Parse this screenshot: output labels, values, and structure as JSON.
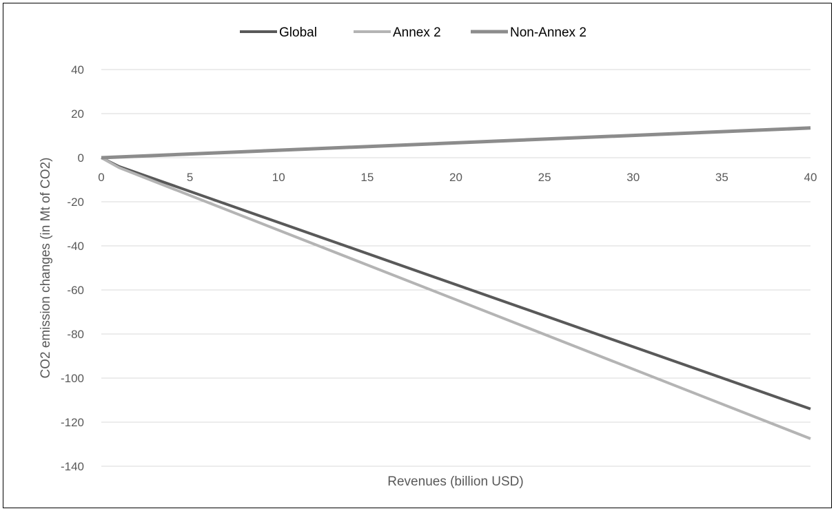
{
  "chart_data": {
    "type": "line",
    "title": "",
    "xlabel": "Revenues (billion USD)",
    "ylabel": "CO2 emission changes (in Mt of CO2)",
    "xlim": [
      0,
      40
    ],
    "ylim": [
      -140,
      40
    ],
    "x_ticks": [
      "0",
      "5",
      "10",
      "15",
      "20",
      "25",
      "30",
      "35",
      "40"
    ],
    "y_ticks": [
      "40",
      "20",
      "0",
      "-20",
      "-40",
      "-60",
      "-80",
      "-100",
      "-120",
      "-140"
    ],
    "grid": true,
    "legend_position": "top",
    "series": [
      {
        "name": "Global",
        "color": "#595959",
        "x": [
          0,
          1,
          40
        ],
        "y": [
          0,
          -4,
          -114
        ]
      },
      {
        "name": "Annex 2",
        "color": "#b4b4b4",
        "x": [
          0,
          1,
          40
        ],
        "y": [
          0,
          -4.5,
          -127.5
        ]
      },
      {
        "name": "Non-Annex 2",
        "color": "#8c8c8c",
        "x": [
          0,
          40
        ],
        "y": [
          0,
          13.5
        ]
      }
    ]
  }
}
